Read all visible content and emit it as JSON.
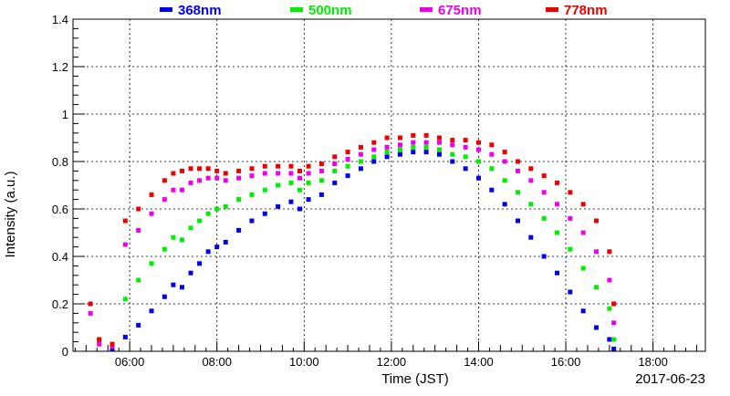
{
  "chart_data": {
    "type": "scatter",
    "xlabel": "Time (JST)",
    "ylabel": "Intensity (a.u.)",
    "date_label": "2017-06-23",
    "x_unit": "hours (JST)",
    "xlim": [
      4.7,
      19.2
    ],
    "ylim": [
      0,
      1.4
    ],
    "x_ticks": [
      6,
      8,
      10,
      12,
      14,
      16,
      18
    ],
    "x_tick_labels": [
      "06:00",
      "08:00",
      "10:00",
      "12:00",
      "14:00",
      "16:00",
      "18:00"
    ],
    "y_ticks": [
      0,
      0.2,
      0.4,
      0.6,
      0.8,
      1,
      1.2,
      1.4
    ],
    "y_tick_labels": [
      "0",
      "0.2",
      "0.4",
      "0.6",
      "0.8",
      "1",
      "1.2",
      "1.4"
    ],
    "grid": true,
    "legend_position": "top",
    "series": [
      {
        "name": "368nm",
        "color": "#0000ee",
        "points": [
          [
            5.6,
            0.01
          ],
          [
            5.9,
            0.06
          ],
          [
            6.2,
            0.11
          ],
          [
            6.5,
            0.17
          ],
          [
            6.8,
            0.23
          ],
          [
            7.0,
            0.28
          ],
          [
            7.2,
            0.27
          ],
          [
            7.4,
            0.33
          ],
          [
            7.6,
            0.37
          ],
          [
            7.8,
            0.42
          ],
          [
            8.0,
            0.44
          ],
          [
            8.2,
            0.46
          ],
          [
            8.5,
            0.51
          ],
          [
            8.8,
            0.55
          ],
          [
            9.1,
            0.58
          ],
          [
            9.4,
            0.61
          ],
          [
            9.7,
            0.63
          ],
          [
            9.9,
            0.6
          ],
          [
            10.1,
            0.64
          ],
          [
            10.4,
            0.66
          ],
          [
            10.7,
            0.71
          ],
          [
            11.0,
            0.74
          ],
          [
            11.3,
            0.77
          ],
          [
            11.6,
            0.8
          ],
          [
            11.9,
            0.82
          ],
          [
            12.2,
            0.83
          ],
          [
            12.5,
            0.84
          ],
          [
            12.8,
            0.84
          ],
          [
            13.1,
            0.83
          ],
          [
            13.4,
            0.8
          ],
          [
            13.7,
            0.77
          ],
          [
            14.0,
            0.73
          ],
          [
            14.3,
            0.68
          ],
          [
            14.6,
            0.62
          ],
          [
            14.9,
            0.55
          ],
          [
            15.2,
            0.48
          ],
          [
            15.5,
            0.4
          ],
          [
            15.8,
            0.33
          ],
          [
            16.1,
            0.25
          ],
          [
            16.4,
            0.17
          ],
          [
            16.7,
            0.1
          ],
          [
            17.0,
            0.05
          ],
          [
            17.1,
            0.01
          ]
        ]
      },
      {
        "name": "500nm",
        "color": "#00ee00",
        "points": [
          [
            5.3,
            0.04
          ],
          [
            5.6,
            0.03
          ],
          [
            5.9,
            0.22
          ],
          [
            6.2,
            0.3
          ],
          [
            6.5,
            0.37
          ],
          [
            6.8,
            0.43
          ],
          [
            7.0,
            0.48
          ],
          [
            7.2,
            0.47
          ],
          [
            7.4,
            0.52
          ],
          [
            7.6,
            0.55
          ],
          [
            7.8,
            0.58
          ],
          [
            8.0,
            0.6
          ],
          [
            8.2,
            0.61
          ],
          [
            8.5,
            0.64
          ],
          [
            8.8,
            0.66
          ],
          [
            9.1,
            0.68
          ],
          [
            9.4,
            0.7
          ],
          [
            9.7,
            0.71
          ],
          [
            9.9,
            0.68
          ],
          [
            10.1,
            0.71
          ],
          [
            10.4,
            0.72
          ],
          [
            10.7,
            0.76
          ],
          [
            11.0,
            0.78
          ],
          [
            11.3,
            0.8
          ],
          [
            11.6,
            0.82
          ],
          [
            11.9,
            0.84
          ],
          [
            12.2,
            0.85
          ],
          [
            12.5,
            0.86
          ],
          [
            12.8,
            0.86
          ],
          [
            13.1,
            0.85
          ],
          [
            13.4,
            0.83
          ],
          [
            13.7,
            0.82
          ],
          [
            14.0,
            0.8
          ],
          [
            14.3,
            0.77
          ],
          [
            14.6,
            0.72
          ],
          [
            14.9,
            0.67
          ],
          [
            15.2,
            0.62
          ],
          [
            15.5,
            0.56
          ],
          [
            15.8,
            0.5
          ],
          [
            16.1,
            0.43
          ],
          [
            16.4,
            0.35
          ],
          [
            16.7,
            0.27
          ],
          [
            17.0,
            0.18
          ],
          [
            17.1,
            0.05
          ]
        ]
      },
      {
        "name": "675nm",
        "color": "#ee00ee",
        "points": [
          [
            5.1,
            0.16
          ],
          [
            5.3,
            0.03
          ],
          [
            5.6,
            0.02
          ],
          [
            5.9,
            0.45
          ],
          [
            6.2,
            0.51
          ],
          [
            6.5,
            0.58
          ],
          [
            6.8,
            0.64
          ],
          [
            7.0,
            0.68
          ],
          [
            7.2,
            0.68
          ],
          [
            7.4,
            0.71
          ],
          [
            7.6,
            0.72
          ],
          [
            7.8,
            0.73
          ],
          [
            8.0,
            0.73
          ],
          [
            8.2,
            0.72
          ],
          [
            8.5,
            0.73
          ],
          [
            8.8,
            0.74
          ],
          [
            9.1,
            0.75
          ],
          [
            9.4,
            0.75
          ],
          [
            9.7,
            0.75
          ],
          [
            9.9,
            0.73
          ],
          [
            10.1,
            0.75
          ],
          [
            10.4,
            0.76
          ],
          [
            10.7,
            0.79
          ],
          [
            11.0,
            0.81
          ],
          [
            11.3,
            0.83
          ],
          [
            11.6,
            0.85
          ],
          [
            11.9,
            0.86
          ],
          [
            12.2,
            0.87
          ],
          [
            12.5,
            0.88
          ],
          [
            12.8,
            0.88
          ],
          [
            13.1,
            0.88
          ],
          [
            13.4,
            0.87
          ],
          [
            13.7,
            0.86
          ],
          [
            14.0,
            0.85
          ],
          [
            14.3,
            0.83
          ],
          [
            14.6,
            0.8
          ],
          [
            14.9,
            0.76
          ],
          [
            15.2,
            0.72
          ],
          [
            15.5,
            0.67
          ],
          [
            15.8,
            0.62
          ],
          [
            16.1,
            0.56
          ],
          [
            16.4,
            0.5
          ],
          [
            16.7,
            0.42
          ],
          [
            17.0,
            0.3
          ],
          [
            17.1,
            0.12
          ]
        ]
      },
      {
        "name": "778nm",
        "color": "#ee0000",
        "points": [
          [
            5.1,
            0.2
          ],
          [
            5.3,
            0.05
          ],
          [
            5.6,
            0.03
          ],
          [
            5.9,
            0.55
          ],
          [
            6.2,
            0.6
          ],
          [
            6.5,
            0.66
          ],
          [
            6.8,
            0.72
          ],
          [
            7.0,
            0.75
          ],
          [
            7.2,
            0.76
          ],
          [
            7.4,
            0.77
          ],
          [
            7.6,
            0.77
          ],
          [
            7.8,
            0.77
          ],
          [
            8.0,
            0.76
          ],
          [
            8.2,
            0.75
          ],
          [
            8.5,
            0.76
          ],
          [
            8.8,
            0.77
          ],
          [
            9.1,
            0.78
          ],
          [
            9.4,
            0.78
          ],
          [
            9.7,
            0.78
          ],
          [
            9.9,
            0.76
          ],
          [
            10.1,
            0.78
          ],
          [
            10.4,
            0.79
          ],
          [
            10.7,
            0.82
          ],
          [
            11.0,
            0.84
          ],
          [
            11.3,
            0.86
          ],
          [
            11.6,
            0.88
          ],
          [
            11.9,
            0.9
          ],
          [
            12.2,
            0.9
          ],
          [
            12.5,
            0.91
          ],
          [
            12.8,
            0.91
          ],
          [
            13.1,
            0.9
          ],
          [
            13.4,
            0.89
          ],
          [
            13.7,
            0.89
          ],
          [
            14.0,
            0.88
          ],
          [
            14.3,
            0.87
          ],
          [
            14.6,
            0.84
          ],
          [
            14.9,
            0.8
          ],
          [
            15.2,
            0.77
          ],
          [
            15.5,
            0.74
          ],
          [
            15.8,
            0.71
          ],
          [
            16.1,
            0.67
          ],
          [
            16.4,
            0.62
          ],
          [
            16.7,
            0.55
          ],
          [
            17.0,
            0.42
          ],
          [
            17.1,
            0.2
          ]
        ]
      }
    ]
  }
}
